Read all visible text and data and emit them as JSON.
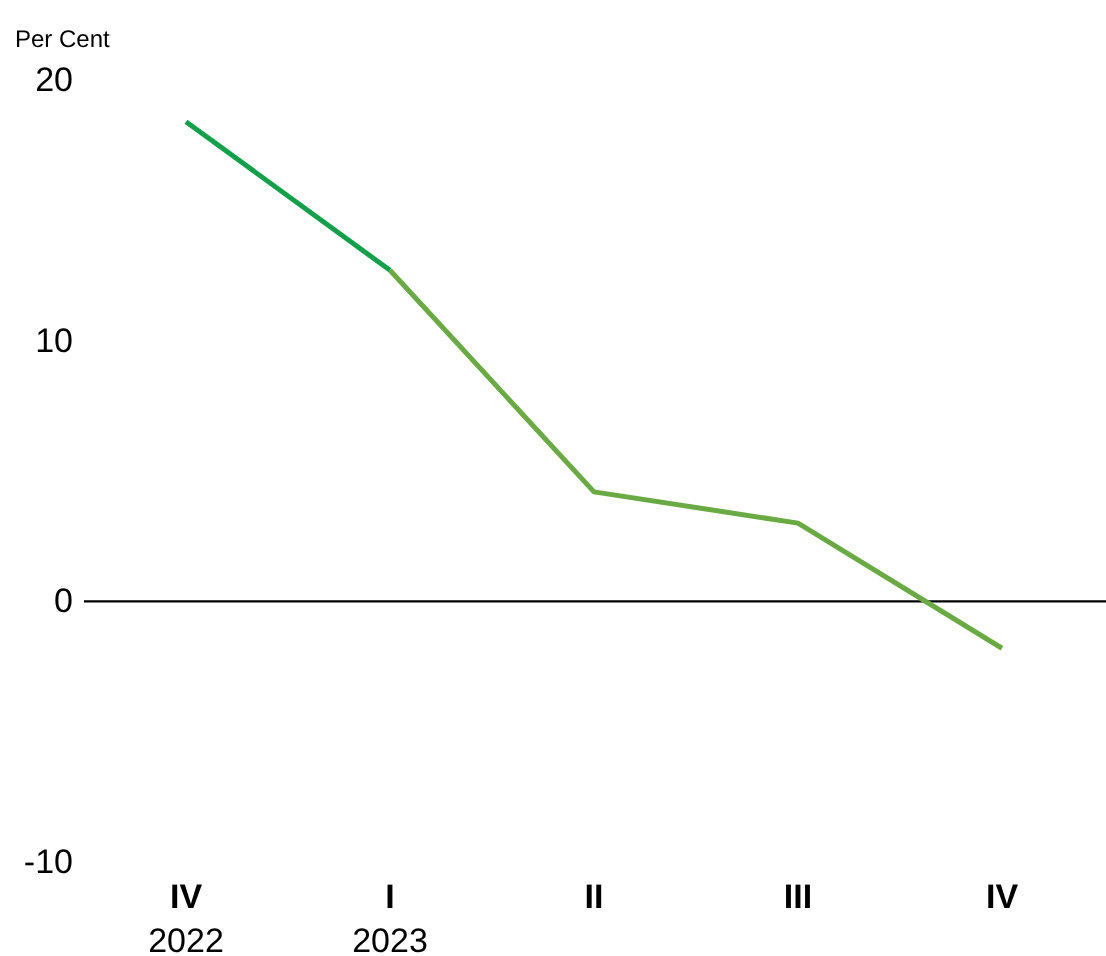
{
  "chart_data": {
    "type": "line",
    "ylabel": "Per Cent",
    "categories": [
      "IV\n2022",
      "I\n2023",
      "II",
      "III",
      "IV"
    ],
    "series": [
      {
        "color": "#14a04a",
        "values": [
          18.4,
          12.7,
          null,
          null,
          null
        ]
      },
      {
        "color": "#6aaa44",
        "values": [
          null,
          12.7,
          4.2,
          3.0,
          -1.8
        ]
      }
    ],
    "ylim": [
      -10,
      20
    ],
    "yticks": [
      -10,
      0,
      10,
      20
    ],
    "grid": false,
    "marker": "none",
    "line_style": "solid",
    "ref_lines": [
      {
        "axis": "y",
        "value": 0,
        "color": "#000000"
      }
    ]
  }
}
